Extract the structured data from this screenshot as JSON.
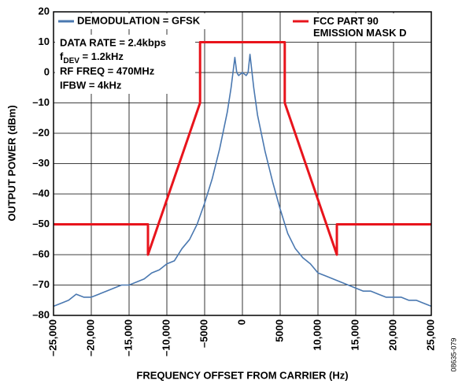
{
  "chart_data": {
    "type": "line",
    "xlabel": "FREQUENCY OFFSET FROM CARRIER (Hz)",
    "ylabel": "OUTPUT POWER (dBm)",
    "side_note": "08635-079",
    "annotations": [
      "DATA RATE = 2.4kbps",
      [
        "f",
        "DEV",
        " = 1.2kHz"
      ],
      "RF FREQ = 470MHz",
      "IFBW = 4kHz"
    ],
    "xlim": [
      -25000,
      25000
    ],
    "ylim": [
      -80,
      20
    ],
    "xticks": [
      {
        "value": -25000,
        "label": "–25,000"
      },
      {
        "value": -20000,
        "label": "–20,000"
      },
      {
        "value": -15000,
        "label": "–15,000"
      },
      {
        "value": -10000,
        "label": "–10,000"
      },
      {
        "value": -5000,
        "label": "–5000"
      },
      0,
      5000,
      {
        "value": 10000,
        "label": "10,000"
      },
      {
        "value": 15000,
        "label": "15,000"
      },
      {
        "value": 20000,
        "label": "20,000"
      },
      {
        "value": 25000,
        "label": "25,000"
      }
    ],
    "yticks": [
      20,
      10,
      0,
      {
        "value": -10,
        "label": "–10"
      },
      {
        "value": -20,
        "label": "–20"
      },
      {
        "value": -30,
        "label": "–30"
      },
      {
        "value": -40,
        "label": "–40"
      },
      {
        "value": -50,
        "label": "–50"
      },
      {
        "value": -60,
        "label": "–60"
      },
      {
        "value": -70,
        "label": "–70"
      },
      {
        "value": -80,
        "label": "–80"
      }
    ],
    "grid": true,
    "series": [
      {
        "name": "DEMODULATION = GFSK",
        "color": "#4a78b0",
        "x": [
          -25000,
          -24000,
          -23000,
          -22000,
          -21000,
          -20000,
          -19000,
          -18000,
          -17000,
          -16000,
          -15000,
          -14000,
          -13000,
          -12000,
          -11000,
          -10000,
          -9000,
          -8000,
          -7000,
          -6000,
          -5000,
          -4000,
          -3000,
          -2000,
          -1500,
          -1000,
          -750,
          -500,
          0,
          500,
          750,
          1000,
          1500,
          2000,
          3000,
          4000,
          5000,
          6000,
          7000,
          8000,
          9000,
          10000,
          11000,
          12000,
          13000,
          14000,
          15000,
          16000,
          17000,
          18000,
          19000,
          20000,
          21000,
          22000,
          23000,
          24000,
          25000
        ],
        "values": [
          -77,
          -76,
          -75,
          -73,
          -74,
          -74,
          -73,
          -72,
          -71,
          -70,
          -70,
          -69,
          -68,
          -66,
          -65,
          -63,
          -62,
          -58,
          -55,
          -50,
          -43,
          -35,
          -25,
          -13,
          -5,
          5,
          0,
          -1,
          0,
          -1,
          0,
          6,
          -5,
          -14,
          -26,
          -36,
          -45,
          -53,
          -58,
          -61,
          -63,
          -66,
          -67,
          -68,
          -69,
          -70,
          -71,
          -72,
          -72,
          -73,
          -74,
          -74,
          -74,
          -75,
          -75,
          -76,
          -77
        ]
      },
      {
        "name": "FCC PART 90\nEMISSION MASK D",
        "color": "#e8141c",
        "x": [
          -25000,
          -12500,
          -12500,
          -5600,
          -5600,
          5600,
          5600,
          12500,
          12500,
          25000
        ],
        "values": [
          -50,
          -50,
          -60,
          -10,
          10,
          10,
          -10,
          -60,
          -50,
          -50
        ]
      }
    ]
  }
}
